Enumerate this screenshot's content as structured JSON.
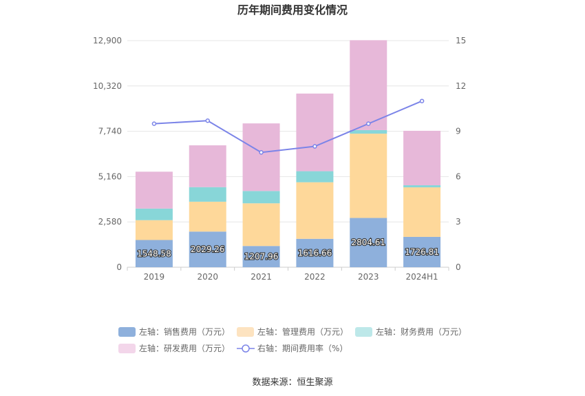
{
  "chart_data": {
    "type": "bar",
    "stacked": true,
    "title": "历年期间费用变化情况",
    "categories": [
      "2019",
      "2020",
      "2021",
      "2022",
      "2023",
      "2024H1"
    ],
    "y_left": {
      "ticks": [
        "0",
        "2,580",
        "5,160",
        "7,740",
        "10,320",
        "12,900"
      ],
      "range": [
        0,
        12900
      ]
    },
    "y_right": {
      "ticks": [
        "0",
        "3",
        "6",
        "9",
        "12",
        "15"
      ],
      "range": [
        0,
        15
      ]
    },
    "series": [
      {
        "name": "左轴：销售费用（万元）",
        "color": "#8eb0dc",
        "axis": "left",
        "values": [
          1548.58,
          2029.26,
          1207.96,
          1616.66,
          2804.61,
          1726.81
        ],
        "labels": [
          "1548.58",
          "2029.26",
          "1207.96",
          "1616.66",
          "2804.61",
          "1726.81"
        ]
      },
      {
        "name": "左轴：管理费用（万元）",
        "color": "#fed89a",
        "axis": "left",
        "values": [
          1130,
          1700,
          2430,
          3220,
          4800,
          2820
        ]
      },
      {
        "name": "左轴：财务费用（万元）",
        "color": "#88d6d8",
        "axis": "left",
        "values": [
          660,
          830,
          700,
          630,
          200,
          120
        ]
      },
      {
        "name": "左轴：研发费用（万元）",
        "color": "#e7b8d9",
        "axis": "left",
        "values": [
          2100,
          2380,
          3850,
          4420,
          5120,
          3100
        ]
      },
      {
        "name": "右轴：期间费用率（%）",
        "color": "#7b84e8",
        "axis": "right",
        "type": "line",
        "values": [
          9.5,
          9.7,
          7.6,
          8.0,
          9.5,
          11.0
        ]
      }
    ],
    "legend": "bottom",
    "grid": true
  },
  "source": "数据来源：恒生聚源"
}
